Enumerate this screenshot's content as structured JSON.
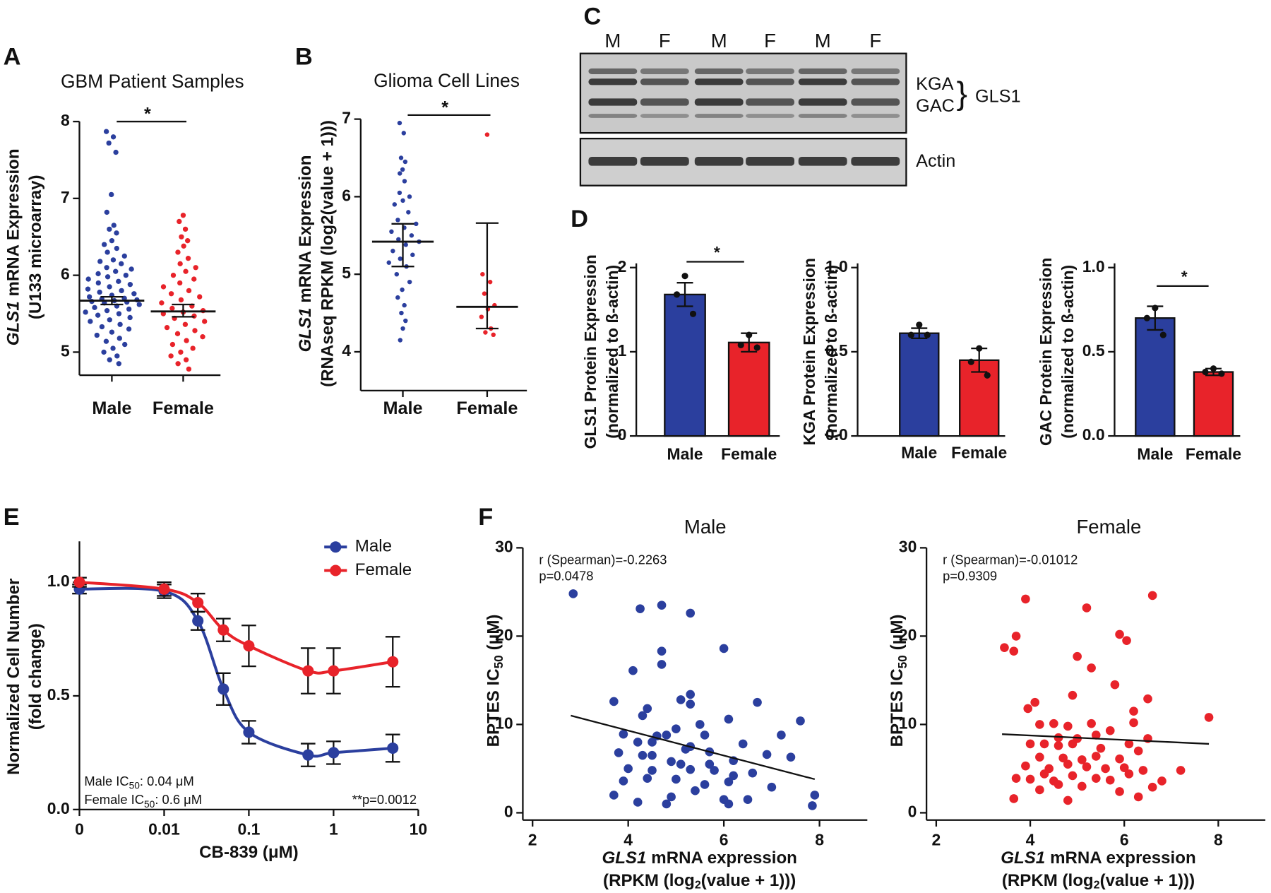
{
  "blot": {
    "panel": "C",
    "lanes": [
      "M",
      "F",
      "M",
      "F",
      "M",
      "F"
    ],
    "bands": [
      "KGA",
      "GAC"
    ],
    "group": "GLS1",
    "loading": "Actin"
  },
  "chart_data": [
    {
      "type": "strip",
      "panel": "A",
      "title": "GBM Patient Samples",
      "ylabel_italic": "GLS1",
      "ylabel": "mRNA Expression",
      "ylabel2": "(U133  microarray)",
      "categories": [
        "Male",
        "Female"
      ],
      "groups": [
        {
          "color": "#2b3f9e",
          "center": 5.67,
          "whisker": [
            5.62,
            5.72
          ],
          "values": [
            7.87,
            7.8,
            7.72,
            7.6,
            7.05,
            6.82,
            6.65,
            6.6,
            6.55,
            6.45,
            6.4,
            6.35,
            6.3,
            6.25,
            6.2,
            6.18,
            6.15,
            6.1,
            6.08,
            6.05,
            6.02,
            6.0,
            5.98,
            5.95,
            5.92,
            5.9,
            5.88,
            5.85,
            5.82,
            5.8,
            5.78,
            5.76,
            5.74,
            5.72,
            5.7,
            5.69,
            5.68,
            5.67,
            5.66,
            5.65,
            5.64,
            5.62,
            5.6,
            5.58,
            5.56,
            5.54,
            5.52,
            5.5,
            5.48,
            5.45,
            5.42,
            5.4,
            5.36,
            5.33,
            5.3,
            5.26,
            5.22,
            5.18,
            5.14,
            5.1,
            5.05,
            5.0,
            4.95,
            4.9,
            4.85
          ]
        },
        {
          "color": "#e8232a",
          "center": 5.53,
          "whisker": [
            5.46,
            5.62
          ],
          "values": [
            6.78,
            6.7,
            6.6,
            6.5,
            6.45,
            6.38,
            6.3,
            6.22,
            6.15,
            6.1,
            6.05,
            6.0,
            5.95,
            5.9,
            5.85,
            5.8,
            5.76,
            5.72,
            5.68,
            5.64,
            5.6,
            5.57,
            5.54,
            5.52,
            5.5,
            5.47,
            5.44,
            5.4,
            5.36,
            5.32,
            5.28,
            5.24,
            5.2,
            5.15,
            5.1,
            5.05,
            5.0,
            4.95,
            4.9,
            4.85,
            4.78
          ]
        }
      ],
      "ylim": [
        4.7,
        8
      ],
      "yticks": [
        5,
        6,
        7,
        8
      ],
      "significance": "*"
    },
    {
      "type": "strip",
      "panel": "B",
      "title": "Glioma Cell Lines",
      "ylabel_italic": "GLS1",
      "ylabel": "mRNA Expression",
      "ylabel2": "(RNAseq RPKM (log2(value + 1)))",
      "categories": [
        "Male",
        "Female"
      ],
      "groups": [
        {
          "color": "#2b3f9e",
          "center": 5.42,
          "whisker": [
            5.1,
            5.65
          ],
          "values": [
            6.95,
            6.82,
            6.5,
            6.45,
            6.35,
            6.3,
            6.2,
            6.05,
            6.0,
            5.95,
            5.9,
            5.8,
            5.7,
            5.65,
            5.6,
            5.55,
            5.5,
            5.45,
            5.42,
            5.38,
            5.3,
            5.25,
            5.2,
            5.15,
            5.1,
            5.0,
            4.9,
            4.8,
            4.7,
            4.6,
            4.5,
            4.4,
            4.3,
            4.15
          ]
        },
        {
          "color": "#e8232a",
          "center": 4.58,
          "whisker": [
            4.3,
            5.66
          ],
          "values": [
            6.8,
            5.0,
            4.9,
            4.75,
            4.6,
            4.55,
            4.45,
            4.3,
            4.25,
            4.22
          ]
        }
      ],
      "ylim": [
        3.5,
        7
      ],
      "yticks": [
        4,
        5,
        6,
        7
      ],
      "significance": "*"
    },
    {
      "type": "bar",
      "panel": "D",
      "ylabel": "GLS1 Protein Expression",
      "ylabel2": "(normalized to ß-actin)",
      "categories": [
        "Male",
        "Female"
      ],
      "colors": [
        "#2b3f9e",
        "#e8232a"
      ],
      "values": [
        1.68,
        1.11
      ],
      "errors": [
        0.14,
        0.11
      ],
      "points": [
        [
          1.9,
          1.68,
          1.45
        ],
        [
          1.2,
          1.08,
          1.05
        ]
      ],
      "ylim": [
        0,
        2.05
      ],
      "yticks": [
        0,
        1,
        2
      ],
      "significance": "*"
    },
    {
      "type": "bar",
      "ylabel": "KGA Protein Expression",
      "ylabel2": "(normalized to ß-actin)",
      "categories": [
        "Male",
        "Female"
      ],
      "colors": [
        "#2b3f9e",
        "#e8232a"
      ],
      "values": [
        0.61,
        0.45
      ],
      "errors": [
        0.03,
        0.07
      ],
      "points": [
        [
          0.66,
          0.6,
          0.6
        ],
        [
          0.52,
          0.44,
          0.36
        ]
      ],
      "ylim": [
        0,
        1.025
      ],
      "yticks": [
        {
          "value": 0,
          "label": "0.0"
        },
        {
          "value": 0.5,
          "label": "0.5"
        },
        {
          "value": 1,
          "label": "1.0"
        }
      ]
    },
    {
      "type": "bar",
      "ylabel": "GAC Protein  Expression",
      "ylabel2": "(normalized to ß-actin)",
      "categories": [
        "Male",
        "Female"
      ],
      "colors": [
        "#2b3f9e",
        "#e8232a"
      ],
      "values": [
        0.7,
        0.38
      ],
      "errors": [
        0.07,
        0.02
      ],
      "points": [
        [
          0.76,
          0.7,
          0.6
        ],
        [
          0.4,
          0.38,
          0.37
        ]
      ],
      "ylim": [
        0,
        1.025
      ],
      "yticks": [
        {
          "value": 0,
          "label": "0.0"
        },
        {
          "value": 0.5,
          "label": "0.5"
        },
        {
          "value": 1,
          "label": "1.0"
        }
      ],
      "significance": "*"
    },
    {
      "type": "line",
      "panel": "E",
      "xlabel": "CB-839 (μM)",
      "ylabel": "Normalized Cell Number",
      "ylabel2": "(fold change)",
      "x": [
        0,
        0.01,
        0.025,
        0.05,
        0.1,
        0.5,
        1,
        5
      ],
      "xscale": "log",
      "xlim": [
        0,
        10
      ],
      "xticks": [
        0,
        0.01,
        0.1,
        1,
        10
      ],
      "ylim": [
        0,
        1.18
      ],
      "yticks": [
        {
          "value": 0,
          "label": "0.0"
        },
        {
          "value": 0.5,
          "label": "0.5"
        },
        {
          "value": 1,
          "label": "1.0"
        }
      ],
      "series": [
        {
          "name": "Male",
          "color": "#2b3f9e",
          "values": [
            0.97,
            0.96,
            0.83,
            0.53,
            0.34,
            0.24,
            0.25,
            0.27
          ],
          "errors": [
            0.02,
            0.03,
            0.04,
            0.07,
            0.05,
            0.05,
            0.05,
            0.06
          ]
        },
        {
          "name": "Female",
          "color": "#e8232a",
          "values": [
            1.0,
            0.97,
            0.91,
            0.79,
            0.72,
            0.61,
            0.61,
            0.65
          ],
          "errors": [
            0.02,
            0.03,
            0.04,
            0.05,
            0.09,
            0.1,
            0.1,
            0.11
          ]
        }
      ],
      "legend": "top-right",
      "ic50": [
        {
          "text": "Male IC",
          "sub": "50",
          "value": ": 0.04 μM"
        },
        {
          "text": "Female IC",
          "sub": "50",
          "value": ": 0.6 μM"
        }
      ],
      "p_value": "**p=0.0012"
    },
    {
      "type": "scatter",
      "panel": "F",
      "title": "Male",
      "color": "#2b3f9e",
      "ylabel": "BPTES IC",
      "ylabel_sub": "50",
      "ylabel_unit": "(μM)",
      "xlabel_italic": "GLS1",
      "xlabel": "mRNA expression",
      "xlabel2": "(RPKM (log",
      "xlabel2_sub": "2",
      "xlabel2_end": "(value + 1)))",
      "annotations": [
        "r (Spearman)=-0.2263",
        "p=0.0478"
      ],
      "x": [
        2.85,
        4.25,
        4.7,
        5.3,
        6.0,
        4.7,
        4.7,
        4.1,
        3.7,
        5.3,
        4.4,
        5.1,
        6.7,
        5.3,
        4.3,
        7.6,
        6.1,
        5.5,
        3.9,
        4.8,
        4.6,
        5.0,
        5.6,
        6.4,
        7.2,
        4.2,
        4.5,
        3.8,
        4.3,
        4.5,
        5.2,
        5.3,
        5.7,
        4.9,
        5.1,
        5.7,
        6.2,
        6.9,
        7.4,
        4.0,
        4.5,
        5.3,
        5.8,
        6.2,
        6.6,
        3.9,
        4.4,
        5.0,
        5.6,
        6.1,
        7.0,
        3.7,
        4.9,
        5.4,
        6.5,
        7.9,
        4.2,
        4.8,
        6.1,
        7.85,
        6.0
      ],
      "values": [
        24.8,
        23.1,
        23.5,
        22.6,
        18.6,
        18.3,
        16.8,
        16.1,
        12.6,
        13.4,
        11.8,
        12.8,
        12.5,
        12.3,
        11.0,
        10.4,
        10.6,
        10.0,
        8.9,
        8.8,
        8.7,
        9.5,
        8.8,
        7.8,
        8.8,
        8.0,
        8.0,
        6.8,
        6.5,
        6.5,
        7.2,
        7.5,
        6.9,
        5.8,
        5.5,
        5.5,
        5.9,
        6.6,
        6.3,
        5.0,
        4.8,
        4.9,
        4.8,
        4.2,
        4.5,
        3.6,
        3.9,
        3.8,
        3.2,
        3.5,
        2.9,
        2.0,
        1.8,
        2.5,
        1.5,
        2.0,
        1.2,
        1.0,
        1.0,
        0.8,
        1.5
      ],
      "trend": {
        "x": [
          2.8,
          7.9
        ],
        "values": [
          11,
          3.8
        ]
      },
      "xlim": [
        2,
        9
      ],
      "xticks": [
        2,
        4,
        6,
        8
      ],
      "ylim": [
        0,
        30
      ],
      "yticks": [
        0,
        10,
        20,
        30
      ]
    },
    {
      "type": "scatter",
      "title": "Female",
      "color": "#e8232a",
      "ylabel": "BPTES IC",
      "ylabel_sub": "50",
      "ylabel_unit": "(μM)",
      "xlabel_italic": "GLS1",
      "xlabel": "mRNA expression",
      "xlabel2": "(RPKM (log",
      "xlabel2_sub": "2",
      "xlabel2_end": "(value + 1)))",
      "annotations": [
        "r (Spearman)=-0.01012",
        "p=0.9309"
      ],
      "x": [
        3.9,
        5.2,
        6.6,
        3.7,
        3.45,
        3.65,
        5.9,
        6.05,
        5.0,
        5.3,
        5.8,
        6.2,
        6.5,
        4.1,
        4.9,
        7.8,
        3.95,
        4.2,
        4.5,
        4.8,
        5.3,
        5.7,
        6.2,
        4.6,
        5.0,
        5.4,
        4.0,
        4.3,
        4.6,
        4.9,
        5.5,
        6.1,
        6.5,
        4.2,
        4.7,
        5.1,
        5.4,
        5.9,
        6.3,
        3.9,
        4.4,
        4.8,
        5.2,
        5.6,
        6.0,
        6.4,
        7.2,
        3.7,
        4.0,
        4.3,
        4.5,
        4.9,
        5.4,
        6.1,
        6.8,
        4.2,
        4.6,
        5.1,
        5.7,
        3.65,
        4.8,
        5.9,
        6.3,
        6.6
      ],
      "values": [
        24.2,
        23.2,
        24.6,
        20.0,
        18.7,
        18.3,
        20.2,
        19.5,
        17.7,
        16.4,
        14.5,
        11.5,
        12.9,
        12.5,
        13.3,
        10.8,
        11.8,
        10.0,
        10.1,
        9.8,
        10.1,
        9.3,
        10.2,
        8.5,
        8.4,
        8.8,
        7.8,
        7.8,
        7.6,
        7.8,
        7.3,
        7.8,
        8.4,
        6.3,
        6.2,
        6.0,
        6.4,
        6.1,
        7.0,
        5.3,
        5.0,
        5.5,
        5.2,
        5.0,
        5.1,
        4.8,
        4.8,
        3.9,
        3.8,
        4.4,
        3.6,
        4.2,
        3.9,
        4.4,
        3.6,
        2.6,
        3.2,
        3.0,
        3.7,
        1.6,
        1.4,
        2.4,
        1.8,
        2.9
      ],
      "trend": {
        "x": [
          3.4,
          7.8
        ],
        "values": [
          8.9,
          7.8
        ]
      },
      "xlim": [
        2,
        9
      ],
      "xticks": [
        2,
        4,
        6,
        8
      ],
      "ylim": [
        0,
        30
      ],
      "yticks": [
        0,
        10,
        20,
        30
      ]
    }
  ]
}
